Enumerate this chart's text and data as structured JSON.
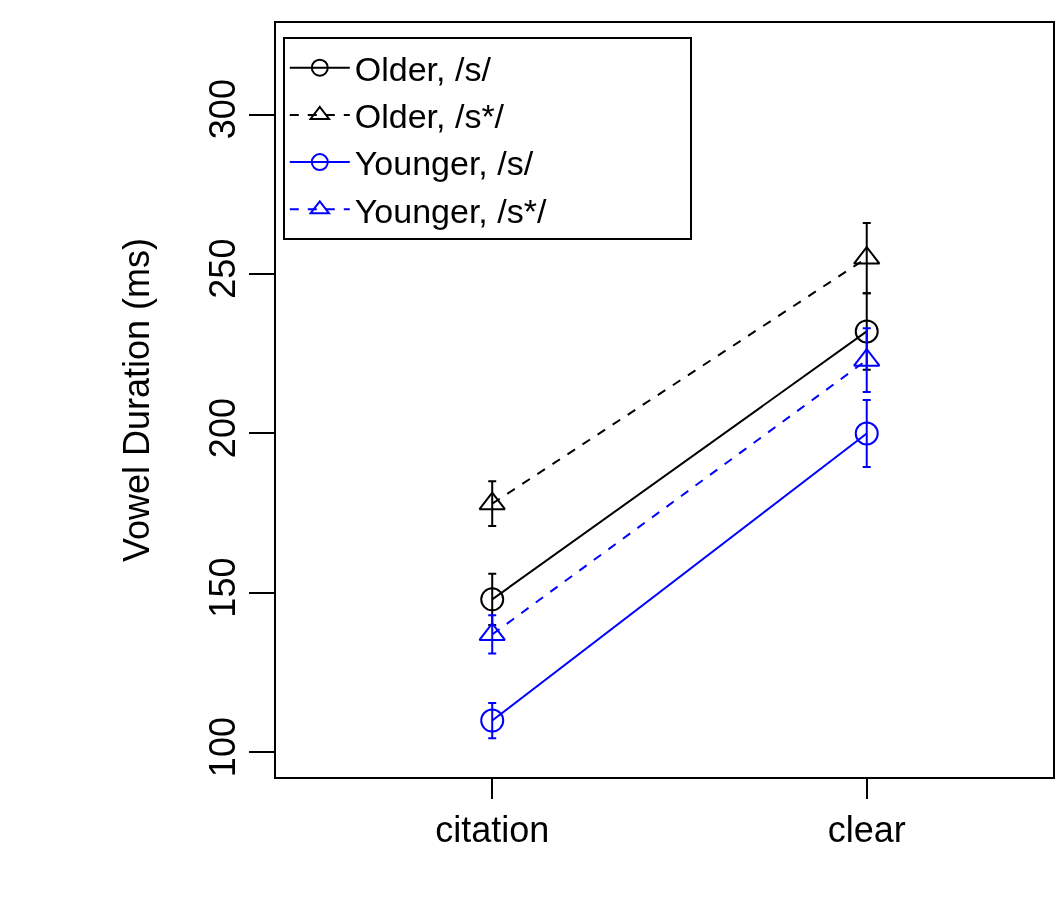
{
  "chart_data": {
    "type": "line",
    "ylabel": "Vowel Duration (ms)",
    "categories": [
      "citation",
      "clear"
    ],
    "series": [
      {
        "name": "Older, /s/",
        "color": "#000000",
        "values": [
          148,
          232
        ],
        "errors": [
          8,
          12
        ],
        "marker": "circle",
        "line_style": "solid"
      },
      {
        "name": "Older, /s*/",
        "color": "#000000",
        "values": [
          178,
          255
        ],
        "errors": [
          7,
          11
        ],
        "marker": "triangle",
        "line_style": "dashed"
      },
      {
        "name": "Younger, /s/",
        "color": "#0000ff",
        "values": [
          110,
          200
        ],
        "errors": [
          5.5,
          10.5
        ],
        "marker": "circle",
        "line_style": "solid"
      },
      {
        "name": "Younger, /s*/",
        "color": "#0000ff",
        "values": [
          137,
          223
        ],
        "errors": [
          6,
          10
        ],
        "marker": "triangle",
        "line_style": "dashed"
      }
    ],
    "ylim": [
      92,
      329
    ],
    "yticks": [
      100,
      150,
      200,
      250,
      300
    ],
    "legend": "top"
  }
}
